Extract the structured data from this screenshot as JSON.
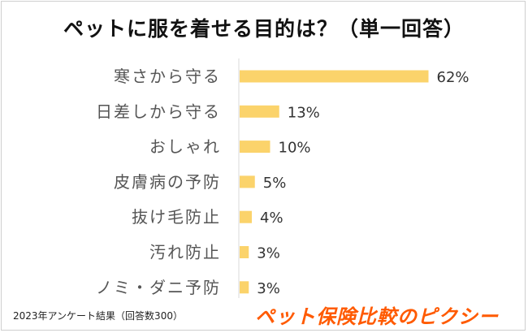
{
  "chart_data": {
    "type": "bar",
    "orientation": "horizontal",
    "title": "ペットに服を着せる目的は？（単一回答）",
    "categories": [
      "寒さから守る",
      "日差しから守る",
      "おしゃれ",
      "皮膚病の予防",
      "抜け毛防止",
      "汚れ防止",
      "ノミ・ダニ予防"
    ],
    "values": [
      62,
      13,
      10,
      5,
      4,
      3,
      3
    ],
    "value_labels": [
      "62%",
      "13%",
      "10%",
      "5%",
      "4%",
      "3%",
      "3%"
    ],
    "unit": "%",
    "xlim": [
      0,
      70
    ],
    "bar_color": "#fbd36b",
    "grid": false,
    "legend": "none"
  },
  "footnote": "2023年アンケート結果（回答数300）",
  "brand": "ペット保険比較のピクシー",
  "colors": {
    "accent": "#ff5a00",
    "axis": "#d9d9d9"
  }
}
